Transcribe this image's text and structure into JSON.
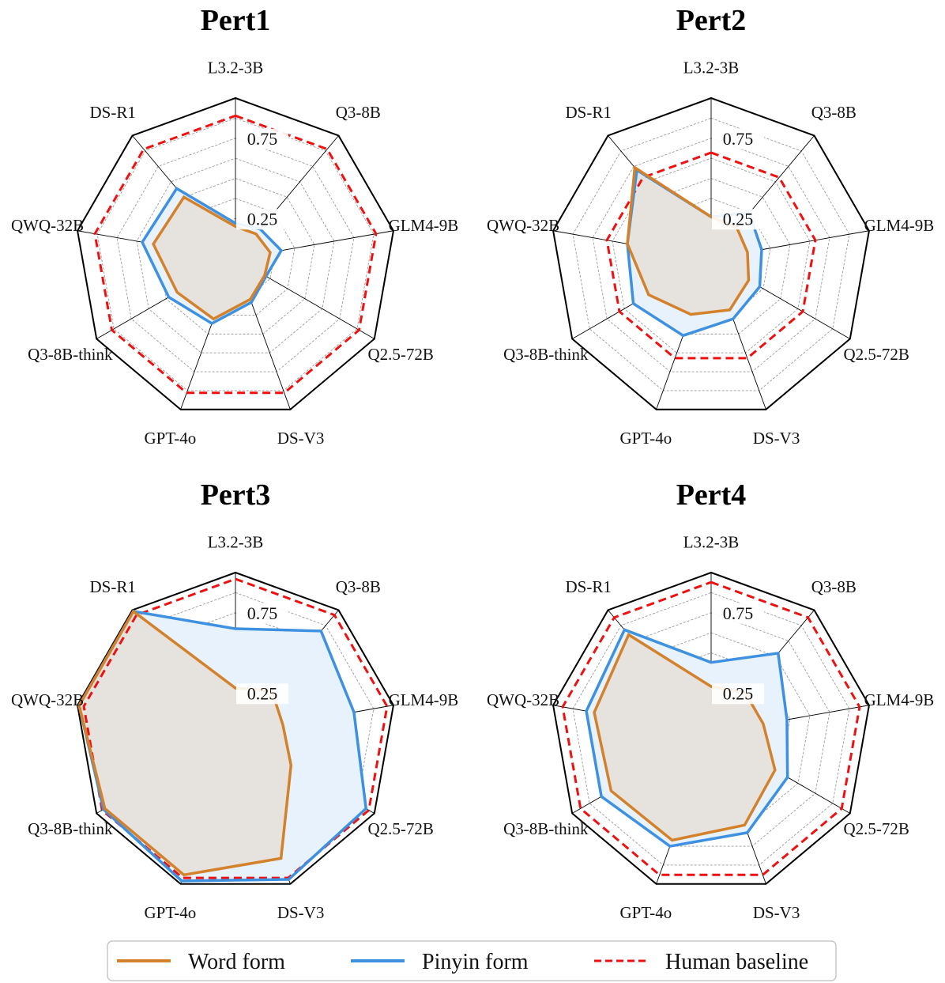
{
  "colors": {
    "word": "#d4812b",
    "pinyin": "#3d91e0",
    "human": "#ee1111",
    "word_fill": "#e6e3df",
    "pinyin_fill": "#e8f2fc"
  },
  "legend": {
    "items": [
      {
        "key": "word",
        "label": "Word form"
      },
      {
        "key": "pinyin",
        "label": "Pinyin form"
      },
      {
        "key": "human",
        "label": "Human baseline"
      }
    ]
  },
  "chart_data": [
    {
      "type": "radar",
      "title": "Pert1",
      "axes": [
        "L3.2-3B",
        "Q3-8B",
        "GLM4-9B",
        "Q2.5-72B",
        "DS-V3",
        "GPT-4o",
        "Q3-8B-think",
        "QWQ-32B",
        "DS-R1"
      ],
      "rlim": [
        0,
        1
      ],
      "rticks": [
        0.125,
        0.25,
        0.375,
        0.5,
        0.625,
        0.75,
        0.875
      ],
      "rtick_labels": [
        {
          "value": 0.25,
          "label": "0.25"
        },
        {
          "value": 0.75,
          "label": "0.75"
        }
      ],
      "grid": true,
      "series": [
        {
          "key": "pinyin",
          "name": "Pinyin form",
          "values": [
            0.22,
            0.24,
            0.29,
            0.22,
            0.29,
            0.43,
            0.48,
            0.59,
            0.57
          ]
        },
        {
          "key": "word",
          "name": "Word form",
          "values": [
            0.2,
            0.2,
            0.22,
            0.21,
            0.27,
            0.4,
            0.42,
            0.52,
            0.5
          ]
        },
        {
          "key": "human",
          "name": "Human baseline",
          "values": [
            0.89,
            0.89,
            0.89,
            0.89,
            0.89,
            0.89,
            0.89,
            0.89,
            0.89
          ]
        }
      ]
    },
    {
      "type": "radar",
      "title": "Pert2",
      "axes": [
        "L3.2-3B",
        "Q3-8B",
        "GLM4-9B",
        "Q2.5-72B",
        "DS-V3",
        "GPT-4o",
        "Q3-8B-think",
        "QWQ-32B",
        "DS-R1"
      ],
      "rlim": [
        0,
        1
      ],
      "rticks": [
        0.125,
        0.25,
        0.375,
        0.5,
        0.625,
        0.75,
        0.875
      ],
      "rtick_labels": [
        {
          "value": 0.25,
          "label": "0.25"
        },
        {
          "value": 0.75,
          "label": "0.75"
        }
      ],
      "grid": true,
      "series": [
        {
          "key": "pinyin",
          "name": "Pinyin form",
          "values": [
            0.26,
            0.37,
            0.32,
            0.35,
            0.4,
            0.51,
            0.56,
            0.53,
            0.72
          ]
        },
        {
          "key": "word",
          "name": "Word form",
          "values": [
            0.26,
            0.25,
            0.23,
            0.27,
            0.34,
            0.37,
            0.45,
            0.53,
            0.74
          ]
        },
        {
          "key": "human",
          "name": "Human baseline",
          "values": [
            0.66,
            0.66,
            0.66,
            0.66,
            0.66,
            0.66,
            0.66,
            0.66,
            0.66
          ]
        }
      ]
    },
    {
      "type": "radar",
      "title": "Pert3",
      "axes": [
        "L3.2-3B",
        "Q3-8B",
        "GLM4-9B",
        "Q2.5-72B",
        "DS-V3",
        "GPT-4o",
        "Q3-8B-think",
        "QWQ-32B",
        "DS-R1"
      ],
      "rlim": [
        0,
        1
      ],
      "rticks": [
        0.125,
        0.25,
        0.375,
        0.5,
        0.625,
        0.75,
        0.875
      ],
      "rtick_labels": [
        {
          "value": 0.25,
          "label": "0.25"
        },
        {
          "value": 0.75,
          "label": "0.75"
        }
      ],
      "grid": true,
      "series": [
        {
          "key": "pinyin",
          "name": "Pinyin form",
          "values": [
            0.65,
            0.83,
            0.75,
            0.94,
            0.97,
            0.98,
            0.95,
            0.99,
            0.99
          ]
        },
        {
          "key": "word",
          "name": "Word form",
          "values": [
            0.28,
            0.35,
            0.3,
            0.4,
            0.83,
            0.94,
            0.94,
            0.99,
            0.99
          ]
        },
        {
          "key": "human",
          "name": "Human baseline",
          "values": [
            0.96,
            0.96,
            0.96,
            0.96,
            0.96,
            0.96,
            0.96,
            0.96,
            0.96
          ]
        }
      ]
    },
    {
      "type": "radar",
      "title": "Pert4",
      "axes": [
        "L3.2-3B",
        "Q3-8B",
        "GLM4-9B",
        "Q2.5-72B",
        "DS-V3",
        "GPT-4o",
        "Q3-8B-think",
        "QWQ-32B",
        "DS-R1"
      ],
      "rlim": [
        0,
        1
      ],
      "rticks": [
        0.125,
        0.25,
        0.375,
        0.5,
        0.625,
        0.75,
        0.875
      ],
      "rtick_labels": [
        {
          "value": 0.25,
          "label": "0.25"
        },
        {
          "value": 0.75,
          "label": "0.75"
        }
      ],
      "grid": true,
      "series": [
        {
          "key": "pinyin",
          "name": "Pinyin form",
          "values": [
            0.44,
            0.65,
            0.48,
            0.55,
            0.66,
            0.75,
            0.79,
            0.79,
            0.84
          ]
        },
        {
          "key": "word",
          "name": "Word form",
          "values": [
            0.29,
            0.33,
            0.33,
            0.46,
            0.61,
            0.71,
            0.72,
            0.74,
            0.8
          ]
        },
        {
          "key": "human",
          "name": "Human baseline",
          "values": [
            0.94,
            0.94,
            0.94,
            0.94,
            0.94,
            0.94,
            0.94,
            0.94,
            0.94
          ]
        }
      ]
    }
  ]
}
